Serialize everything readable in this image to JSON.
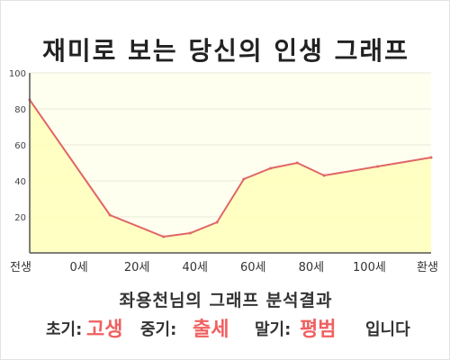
{
  "title": "재미로 보는 당신의 인생 그래프",
  "chart_data": {
    "type": "area",
    "title": "재미로 보는 당신의 인생 그래프",
    "xlabel": "",
    "ylabel": "",
    "x_ticks": [
      "전생",
      "0세",
      "20세",
      "40세",
      "60세",
      "80세",
      "100세",
      "환생"
    ],
    "y_ticks": [
      20,
      40,
      60,
      80,
      100
    ],
    "ylim": [
      0,
      100
    ],
    "x_range": [
      -30,
      120
    ],
    "points": [
      {
        "age": -30,
        "value": 85
      },
      {
        "age": 0,
        "value": 21
      },
      {
        "age": 20,
        "value": 9
      },
      {
        "age": 30,
        "value": 11
      },
      {
        "age": 40,
        "value": 17
      },
      {
        "age": 50,
        "value": 41
      },
      {
        "age": 60,
        "value": 47
      },
      {
        "age": 70,
        "value": 50
      },
      {
        "age": 80,
        "value": 43
      },
      {
        "age": 100,
        "value": 48
      },
      {
        "age": 120,
        "value": 53
      }
    ],
    "grid": true,
    "colors": {
      "line": "#e06666",
      "fill": "#ffffbb",
      "plot_background": "#fffff0",
      "grid": "#e8e8d8",
      "axis": "#555555"
    }
  },
  "summary": {
    "heading": "좌용천님의 그래프 분석결과",
    "early_label": "초기:",
    "early_value": "고생",
    "mid_label": "중기:",
    "mid_value": "출세",
    "late_label": "말기:",
    "late_value": "평범",
    "suffix": "입니다"
  }
}
